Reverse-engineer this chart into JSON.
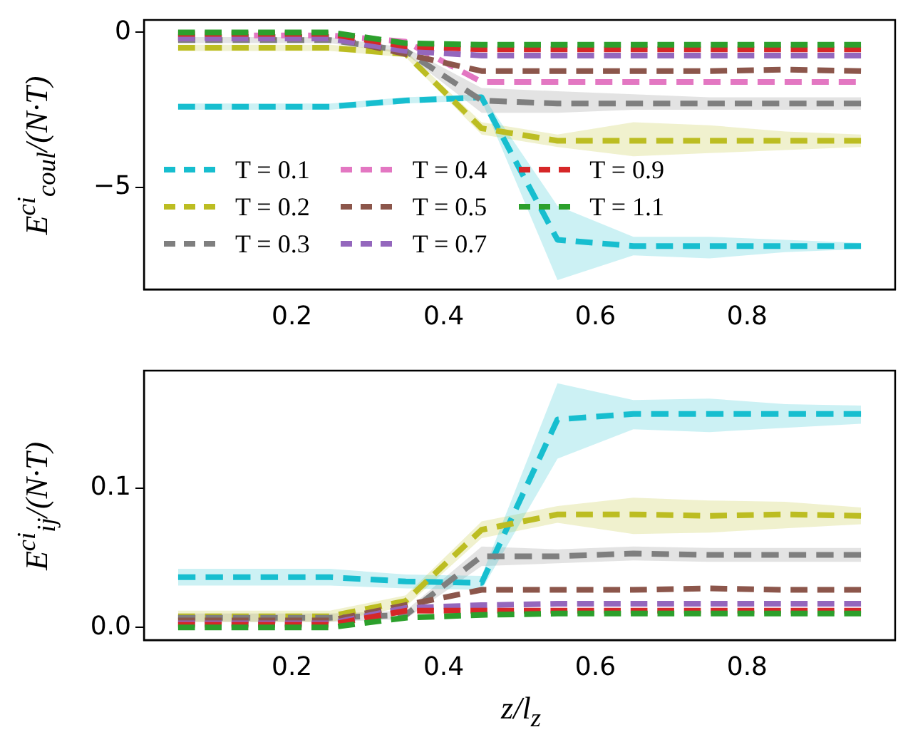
{
  "chart_data": [
    {
      "type": "line",
      "ylabel": "E$^{ci}$$_{coul}$/(N·T)",
      "x": [
        0.05,
        0.15,
        0.25,
        0.35,
        0.45,
        0.55,
        0.65,
        0.75,
        0.85,
        0.95
      ],
      "xlim": [
        0.005,
        0.995
      ],
      "xticks": [
        0.2,
        0.4,
        0.6,
        0.8
      ],
      "ylim": [
        -8.3,
        0.4
      ],
      "yticks": [
        {
          "value": -5,
          "label": "−5"
        },
        0
      ],
      "grid": false,
      "legend": "lower left",
      "line_style": "dashed",
      "marker": "none",
      "series": [
        {
          "name": "T = 0.1",
          "color": "#17becf",
          "values": [
            -2.4,
            -2.4,
            -2.4,
            -2.2,
            -2.1,
            -6.7,
            -6.9,
            -6.9,
            -6.9,
            -6.9
          ],
          "lower": [
            -2.5,
            -2.5,
            -2.5,
            -2.3,
            -2.2,
            -8.0,
            -7.2,
            -7.3,
            -7.1,
            -7.0
          ],
          "upper": [
            -2.3,
            -2.3,
            -2.3,
            -2.1,
            -2.0,
            -5.6,
            -6.6,
            -6.6,
            -6.7,
            -6.8
          ]
        },
        {
          "name": "T = 0.2",
          "color": "#bcbd22",
          "values": [
            -0.5,
            -0.5,
            -0.5,
            -0.7,
            -3.1,
            -3.5,
            -3.5,
            -3.5,
            -3.5,
            -3.5
          ],
          "lower": [
            -0.6,
            -0.6,
            -0.6,
            -0.8,
            -3.3,
            -3.7,
            -4.0,
            -3.9,
            -3.8,
            -3.7
          ],
          "upper": [
            -0.4,
            -0.4,
            -0.4,
            -0.6,
            -2.9,
            -3.3,
            -2.9,
            -3.0,
            -3.2,
            -3.3
          ]
        },
        {
          "name": "T = 0.3",
          "color": "#7f7f7f",
          "values": [
            -0.25,
            -0.25,
            -0.25,
            -0.6,
            -2.2,
            -2.3,
            -2.3,
            -2.3,
            -2.3,
            -2.3
          ],
          "lower": [
            -0.35,
            -0.35,
            -0.35,
            -0.7,
            -2.6,
            -2.6,
            -2.5,
            -2.5,
            -2.5,
            -2.5
          ],
          "upper": [
            -0.15,
            -0.15,
            -0.15,
            -0.5,
            -1.8,
            -1.9,
            -2.0,
            -2.1,
            -2.1,
            -2.1
          ]
        },
        {
          "name": "T = 0.4",
          "color": "#e377c2",
          "values": [
            null,
            -0.1,
            -0.1,
            -0.3,
            -1.6,
            -1.6,
            -1.6,
            -1.6,
            -1.6,
            -1.6
          ]
        },
        {
          "name": "T = 0.5",
          "color": "#8c564b",
          "values": [
            -0.15,
            -0.15,
            -0.15,
            -0.7,
            -1.25,
            -1.25,
            -1.25,
            -1.25,
            -1.2,
            -1.25
          ]
        },
        {
          "name": "T = 0.7",
          "color": "#9467bd",
          "values": [
            -0.2,
            -0.2,
            -0.2,
            -0.6,
            -0.75,
            -0.75,
            -0.75,
            -0.75,
            -0.75,
            -0.75
          ]
        },
        {
          "name": "T = 0.9",
          "color": "#d62728",
          "values": [
            -0.05,
            -0.05,
            -0.05,
            -0.45,
            -0.55,
            -0.55,
            -0.55,
            -0.55,
            -0.55,
            -0.55
          ]
        },
        {
          "name": "T = 1.1",
          "color": "#2ca02c",
          "values": [
            0,
            0,
            0,
            -0.35,
            -0.4,
            -0.4,
            -0.4,
            -0.4,
            -0.4,
            -0.4
          ]
        }
      ]
    },
    {
      "type": "line",
      "xlabel": "z/l$_{z}$",
      "ylabel": "E$^{ci}$$_{ij}$/(N·T)",
      "x": [
        0.05,
        0.15,
        0.25,
        0.35,
        0.45,
        0.55,
        0.65,
        0.75,
        0.85,
        0.95
      ],
      "xlim": [
        0.005,
        0.995
      ],
      "xticks": [
        0.2,
        0.4,
        0.6,
        0.8
      ],
      "ylim": [
        -0.009,
        0.184
      ],
      "yticks": [
        {
          "value": 0,
          "label": "0.0"
        },
        0.1
      ],
      "grid": false,
      "line_style": "dashed",
      "marker": "none",
      "series": [
        {
          "color": "#17becf",
          "values": [
            0.036,
            0.036,
            0.036,
            0.033,
            0.032,
            0.149,
            0.153,
            0.153,
            0.153,
            0.153
          ],
          "lower": [
            0.03,
            0.03,
            0.03,
            0.028,
            0.027,
            0.121,
            0.142,
            0.14,
            0.143,
            0.146
          ],
          "upper": [
            0.042,
            0.042,
            0.042,
            0.038,
            0.037,
            0.175,
            0.163,
            0.164,
            0.16,
            0.159
          ]
        },
        {
          "color": "#bcbd22",
          "values": [
            0.008,
            0.008,
            0.008,
            0.019,
            0.07,
            0.081,
            0.081,
            0.08,
            0.081,
            0.08
          ],
          "lower": [
            0.004,
            0.004,
            0.004,
            0.015,
            0.064,
            0.075,
            0.067,
            0.068,
            0.071,
            0.074
          ],
          "upper": [
            0.012,
            0.012,
            0.012,
            0.023,
            0.076,
            0.087,
            0.093,
            0.091,
            0.09,
            0.086
          ]
        },
        {
          "color": "#7f7f7f",
          "values": [
            0.007,
            0.007,
            0.007,
            0.009,
            0.051,
            0.051,
            0.053,
            0.052,
            0.052,
            0.052
          ],
          "lower": [
            0.004,
            0.004,
            0.004,
            0.006,
            0.044,
            0.046,
            0.048,
            0.047,
            0.047,
            0.047
          ],
          "upper": [
            0.01,
            0.01,
            0.01,
            0.012,
            0.058,
            0.056,
            0.058,
            0.057,
            0.057,
            0.057
          ]
        },
        {
          "color": "#8c564b",
          "values": [
            0.005,
            0.005,
            0.005,
            0.016,
            0.027,
            0.027,
            0.027,
            0.028,
            0.027,
            0.027
          ]
        },
        {
          "color": "#9467bd",
          "values": [
            0.003,
            0.003,
            0.003,
            0.014,
            0.016,
            0.017,
            0.017,
            0.017,
            0.017,
            0.017
          ]
        },
        {
          "color": "#d62728",
          "values": [
            0.002,
            0.002,
            0.002,
            0.012,
            0.012,
            0.012,
            0.012,
            0.012,
            0.012,
            0.012
          ]
        },
        {
          "color": "#2ca02c",
          "values": [
            0,
            0,
            0,
            0.007,
            0.009,
            0.01,
            0.01,
            0.01,
            0.01,
            0.01
          ]
        }
      ]
    }
  ]
}
